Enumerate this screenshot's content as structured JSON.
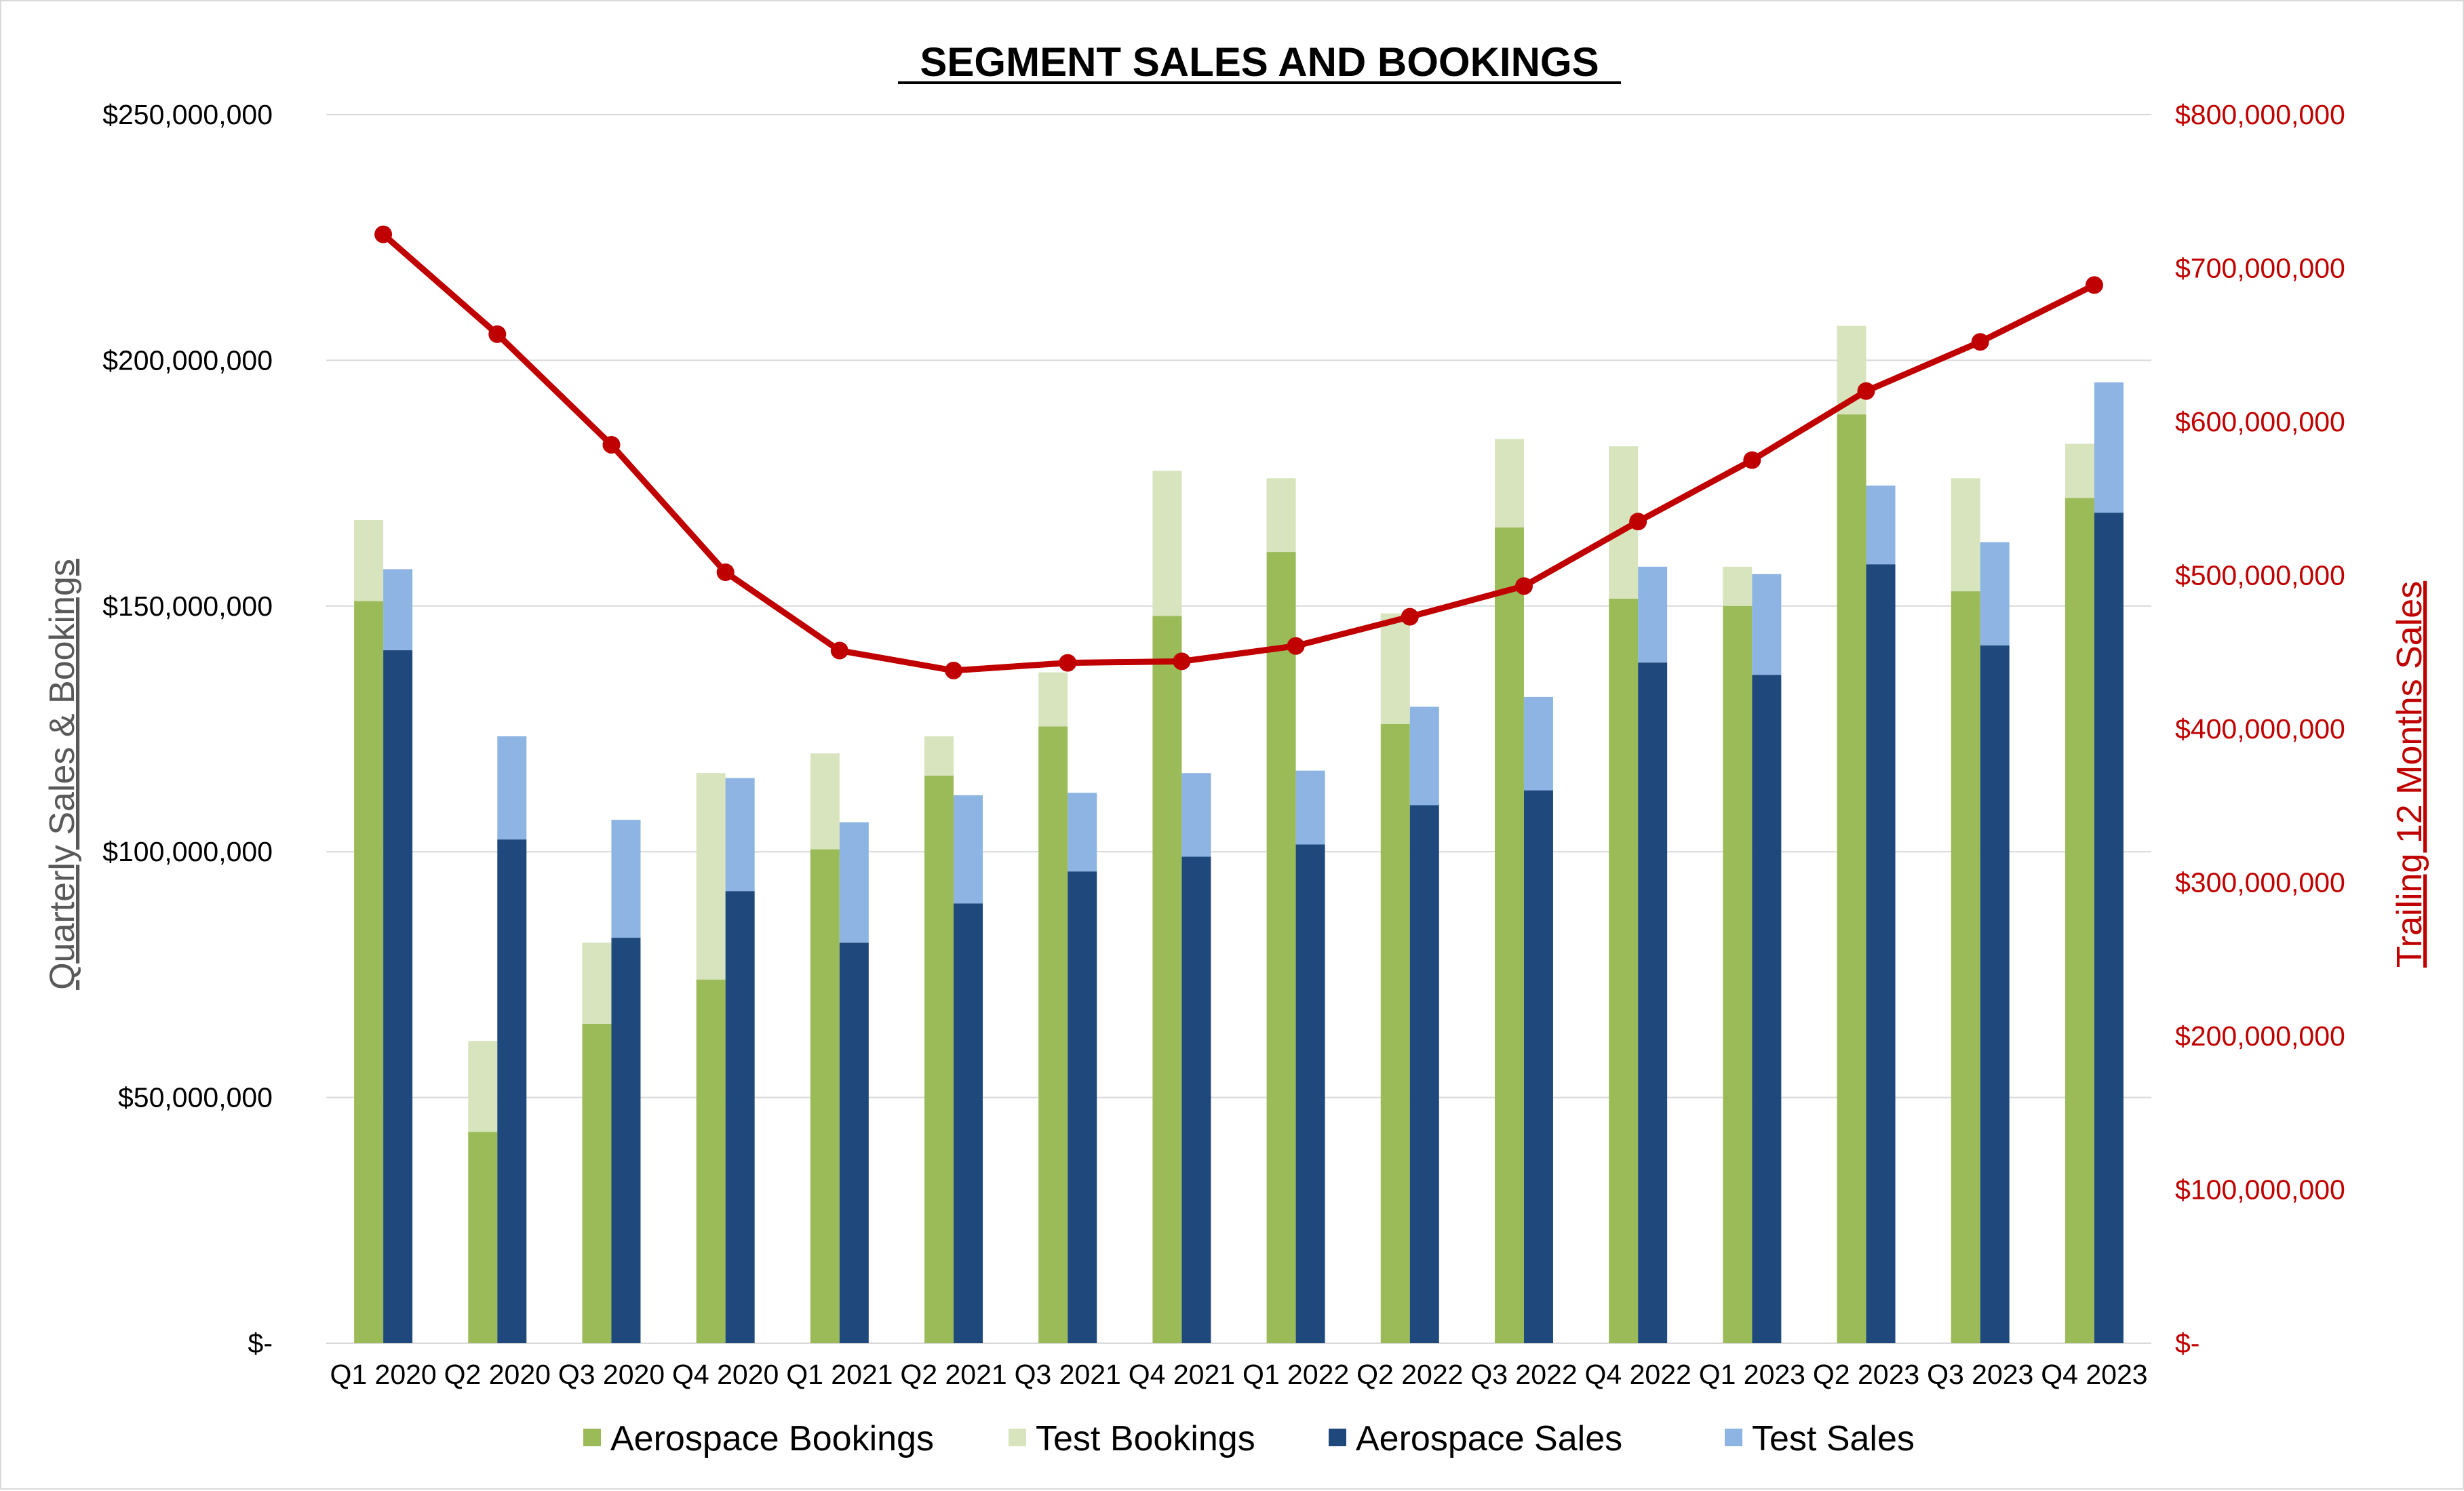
{
  "chart_data": {
    "type": "bar",
    "title": "SEGMENT SALES AND BOOKINGS",
    "ylabel": "Quarterly Sales & Bookings",
    "y2label": "Trailing  12 Months Sales",
    "ylim": [
      0,
      250000000
    ],
    "y2lim": [
      0,
      800000000
    ],
    "grid": true,
    "legend_position": "bottom",
    "categories": [
      "Q1 2020",
      "Q2 2020",
      "Q3 2020",
      "Q4 2020",
      "Q1 2021",
      "Q2 2021",
      "Q3 2021",
      "Q4 2021",
      "Q1 2022",
      "Q2 2022",
      "Q3 2022",
      "Q4 2022",
      "Q1 2023",
      "Q2 2023",
      "Q3 2023",
      "Q4 2023"
    ],
    "y_ticks": [
      {
        "value": 0,
        "label": "$-"
      },
      {
        "value": 50000000,
        "label": "$50,000,000"
      },
      {
        "value": 100000000,
        "label": "$100,000,000"
      },
      {
        "value": 150000000,
        "label": "$150,000,000"
      },
      {
        "value": 200000000,
        "label": "$200,000,000"
      },
      {
        "value": 250000000,
        "label": "$250,000,000"
      }
    ],
    "y2_ticks": [
      {
        "value": 0,
        "label": "$-"
      },
      {
        "value": 100000000,
        "label": "$100,000,000"
      },
      {
        "value": 200000000,
        "label": "$200,000,000"
      },
      {
        "value": 300000000,
        "label": "$300,000,000"
      },
      {
        "value": 400000000,
        "label": "$400,000,000"
      },
      {
        "value": 500000000,
        "label": "$500,000,000"
      },
      {
        "value": 600000000,
        "label": "$600,000,000"
      },
      {
        "value": 700000000,
        "label": "$700,000,000"
      },
      {
        "value": 800000000,
        "label": "$800,000,000"
      }
    ],
    "series": [
      {
        "name": "Aerospace Bookings",
        "stack": "bookings",
        "axis": "left",
        "color": "#9bbb59",
        "values": [
          151000000,
          43000000,
          65000000,
          74000000,
          100500000,
          115500000,
          125500000,
          148000000,
          161000000,
          126000000,
          166000000,
          151500000,
          150000000,
          189000000,
          153000000,
          172000000
        ]
      },
      {
        "name": "Test Bookings",
        "stack": "bookings",
        "axis": "left",
        "color": "#d7e4bd",
        "values": [
          16500000,
          18500000,
          16500000,
          42000000,
          19500000,
          8000000,
          11000000,
          29500000,
          15000000,
          22500000,
          18000000,
          31000000,
          8000000,
          18000000,
          23000000,
          11000000
        ]
      },
      {
        "name": "Aerospace Sales",
        "stack": "sales",
        "axis": "left",
        "color": "#1f497d",
        "values": [
          141000000,
          102500000,
          82500000,
          92000000,
          81500000,
          89500000,
          96000000,
          99000000,
          101500000,
          109500000,
          112500000,
          138500000,
          136000000,
          158500000,
          142000000,
          169000000
        ]
      },
      {
        "name": "Test Sales",
        "stack": "sales",
        "axis": "left",
        "color": "#8db4e2",
        "values": [
          16500000,
          21000000,
          24000000,
          23000000,
          24500000,
          22000000,
          16000000,
          17000000,
          15000000,
          20000000,
          19000000,
          19500000,
          20500000,
          16000000,
          21000000,
          26500000
        ]
      },
      {
        "name": "Trailing 12 Months Sales",
        "type": "line",
        "axis": "right",
        "color": "#c00000",
        "values": [
          722000000,
          657000000,
          585000000,
          502000000,
          451000000,
          438000000,
          443000000,
          444000000,
          454000000,
          473000000,
          493000000,
          535000000,
          575000000,
          620000000,
          652000000,
          689000000
        ]
      }
    ],
    "legend": [
      "Aerospace Bookings",
      "Test Bookings",
      "Aerospace Sales",
      "Test Sales"
    ]
  },
  "colors": {
    "grid": "#d9d9d9",
    "axis_text": "#000000",
    "left_title": "#595959",
    "right_text": "#c00000"
  }
}
